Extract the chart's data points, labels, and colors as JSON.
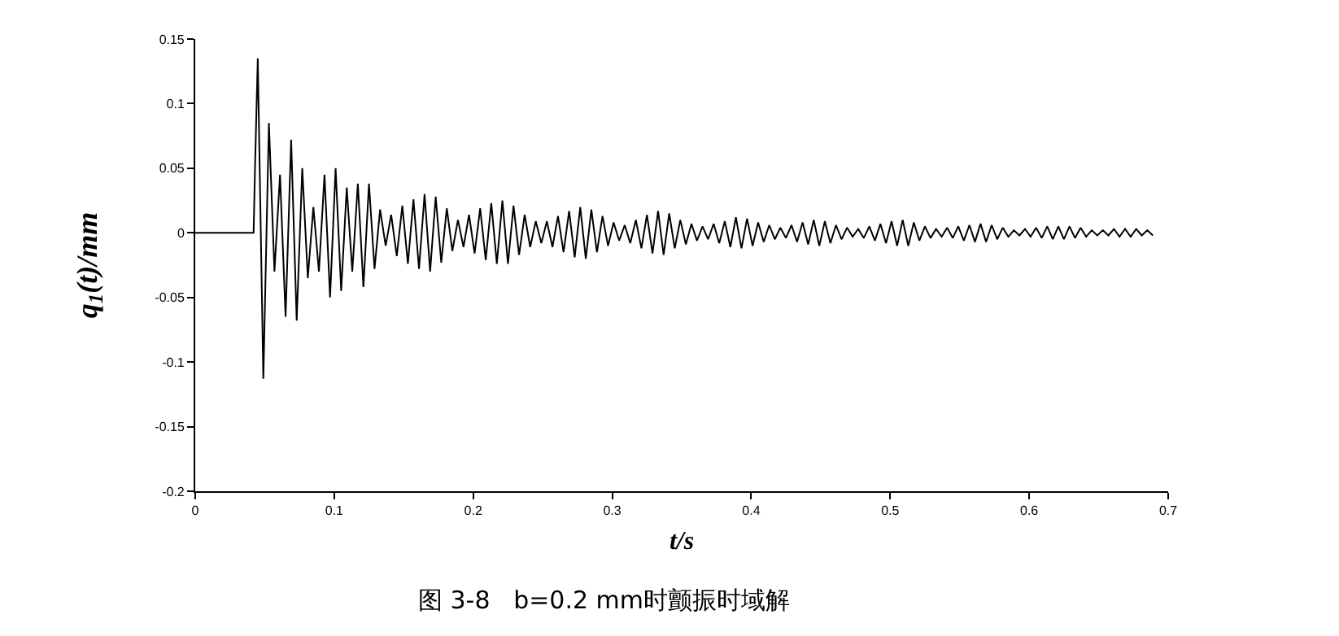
{
  "chart_data": {
    "type": "line",
    "xlabel": "t/s",
    "ylabel": "q$_{1}$(t)/mm",
    "annotations": [
      "图 3-8   b=0.2 mm时颤振时域解"
    ],
    "xlim": [
      0,
      0.7
    ],
    "xticks": [
      0,
      0.1,
      0.2,
      0.3,
      0.4,
      0.5,
      0.6,
      0.7
    ],
    "ylim": [
      -0.2,
      0.15
    ],
    "yticks": [
      -0.2,
      -0.15,
      -0.1,
      -0.05,
      0,
      0.05,
      0.1,
      0.15
    ],
    "marker": "none",
    "line_style": "solid",
    "series": [
      {
        "color": "#000000",
        "x": [
          0,
          0.042,
          0.043,
          0.045,
          0.049,
          0.053,
          0.057,
          0.061,
          0.065,
          0.069,
          0.073,
          0.077,
          0.081,
          0.085,
          0.089,
          0.093,
          0.097,
          0.101,
          0.105,
          0.109,
          0.113,
          0.117,
          0.121,
          0.125,
          0.129,
          0.133,
          0.137,
          0.141,
          0.145,
          0.149,
          0.153,
          0.157,
          0.161,
          0.165,
          0.169,
          0.173,
          0.177,
          0.181,
          0.185,
          0.189,
          0.193,
          0.197,
          0.201,
          0.205,
          0.209,
          0.213,
          0.217,
          0.221,
          0.225,
          0.229,
          0.233,
          0.237,
          0.241,
          0.245,
          0.249,
          0.253,
          0.257,
          0.261,
          0.265,
          0.269,
          0.273,
          0.277,
          0.281,
          0.285,
          0.289,
          0.293,
          0.297,
          0.301,
          0.305,
          0.309,
          0.313,
          0.317,
          0.321,
          0.325,
          0.329,
          0.333,
          0.337,
          0.341,
          0.345,
          0.349,
          0.353,
          0.357,
          0.361,
          0.365,
          0.369,
          0.373,
          0.377,
          0.381,
          0.385,
          0.389,
          0.393,
          0.397,
          0.401,
          0.405,
          0.409,
          0.413,
          0.417,
          0.421,
          0.425,
          0.429,
          0.433,
          0.437,
          0.441,
          0.445,
          0.449,
          0.453,
          0.457,
          0.461,
          0.465,
          0.469,
          0.473,
          0.477,
          0.481,
          0.485,
          0.489,
          0.493,
          0.497,
          0.501,
          0.505,
          0.509,
          0.513,
          0.517,
          0.521,
          0.525,
          0.529,
          0.533,
          0.537,
          0.541,
          0.545,
          0.549,
          0.553,
          0.557,
          0.561,
          0.565,
          0.569,
          0.573,
          0.577,
          0.581,
          0.585,
          0.589,
          0.593,
          0.597,
          0.601,
          0.605,
          0.609,
          0.613,
          0.617,
          0.621,
          0.625,
          0.629,
          0.633,
          0.637,
          0.641,
          0.645,
          0.649,
          0.653,
          0.657,
          0.661,
          0.665,
          0.669,
          0.673,
          0.677,
          0.681,
          0.685,
          0.689
        ],
        "values": [
          0,
          0,
          0.05,
          0.135,
          -0.113,
          0.085,
          -0.03,
          0.045,
          -0.065,
          0.072,
          -0.068,
          0.05,
          -0.035,
          0.02,
          -0.03,
          0.045,
          -0.05,
          0.05,
          -0.045,
          0.035,
          -0.03,
          0.038,
          -0.042,
          0.038,
          -0.028,
          0.018,
          -0.01,
          0.014,
          -0.018,
          0.021,
          -0.024,
          0.026,
          -0.028,
          0.03,
          -0.03,
          0.028,
          -0.023,
          0.019,
          -0.014,
          0.01,
          -0.011,
          0.014,
          -0.016,
          0.019,
          -0.021,
          0.023,
          -0.024,
          0.025,
          -0.024,
          0.021,
          -0.017,
          0.014,
          -0.011,
          0.009,
          -0.008,
          0.009,
          -0.011,
          0.013,
          -0.015,
          0.017,
          -0.019,
          0.02,
          -0.02,
          0.018,
          -0.015,
          0.013,
          -0.01,
          0.008,
          -0.006,
          0.006,
          -0.008,
          0.01,
          -0.012,
          0.014,
          -0.016,
          0.017,
          -0.017,
          0.015,
          -0.012,
          0.01,
          -0.009,
          0.007,
          -0.006,
          0.005,
          -0.005,
          0.007,
          -0.008,
          0.009,
          -0.011,
          0.012,
          -0.012,
          0.011,
          -0.01,
          0.008,
          -0.007,
          0.006,
          -0.005,
          0.004,
          -0.004,
          0.006,
          -0.007,
          0.008,
          -0.009,
          0.01,
          -0.01,
          0.009,
          -0.008,
          0.006,
          -0.005,
          0.004,
          -0.003,
          0.003,
          -0.004,
          0.005,
          -0.006,
          0.007,
          -0.008,
          0.009,
          -0.01,
          0.01,
          -0.01,
          0.008,
          -0.006,
          0.005,
          -0.004,
          0.003,
          -0.003,
          0.004,
          -0.004,
          0.005,
          -0.006,
          0.006,
          -0.007,
          0.007,
          -0.007,
          0.006,
          -0.005,
          0.004,
          -0.003,
          0.002,
          -0.002,
          0.003,
          -0.003,
          0.004,
          -0.004,
          0.005,
          -0.005,
          0.005,
          -0.005,
          0.005,
          -0.004,
          0.004,
          -0.003,
          0.002,
          -0.002,
          0.002,
          -0.002,
          0.003,
          -0.003,
          0.003,
          -0.003,
          0.003,
          -0.002,
          0.002,
          -0.002
        ]
      }
    ]
  }
}
